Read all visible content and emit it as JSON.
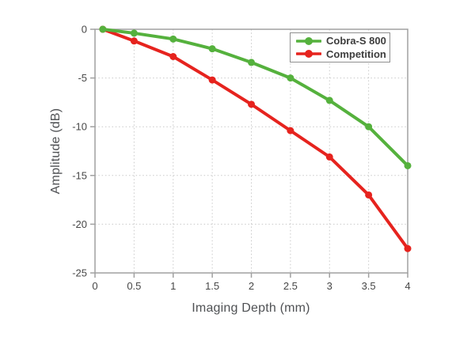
{
  "figure": {
    "background": "#ffffff"
  },
  "chart_data": {
    "type": "line",
    "title": "",
    "xlabel": "Imaging Depth (mm)",
    "ylabel": "Amplitude (dB)",
    "xlim": [
      0,
      4
    ],
    "ylim": [
      -25,
      0
    ],
    "x_ticks": [
      0,
      0.5,
      1,
      1.5,
      2,
      2.5,
      3,
      3.5,
      4
    ],
    "x_tick_labels": [
      "0",
      "0.5",
      "1",
      "1.5",
      "2",
      "2.5",
      "3",
      "3.5",
      "4"
    ],
    "y_ticks": [
      0,
      -5,
      -10,
      -15,
      -20,
      -25
    ],
    "y_tick_labels": [
      "0",
      "-5",
      "-10",
      "-15",
      "-20",
      "-25"
    ],
    "grid": true,
    "grid_style": "dotted",
    "legend_position": "top-right-inside",
    "x": [
      0.1,
      0.5,
      1,
      1.5,
      2,
      2.5,
      3,
      3.5,
      4
    ],
    "series": [
      {
        "name": "Cobra-S 800",
        "color": "#55b13d",
        "values": [
          0,
          -0.4,
          -1.0,
          -2.0,
          -3.4,
          -5.0,
          -7.3,
          -10.0,
          -14.0
        ]
      },
      {
        "name": "Competition",
        "color": "#e6231e",
        "values": [
          0,
          -1.2,
          -2.8,
          -5.2,
          -7.7,
          -10.4,
          -13.1,
          -17.0,
          -22.5
        ]
      }
    ]
  },
  "colors": {
    "axis_frame": "#a0a0a0",
    "gridline": "#c9c9c9",
    "tick_text": "#474747",
    "axis_title_text": "#4f5154",
    "legend_border": "#8f8f8f",
    "legend_text": "#3d3d3d"
  }
}
